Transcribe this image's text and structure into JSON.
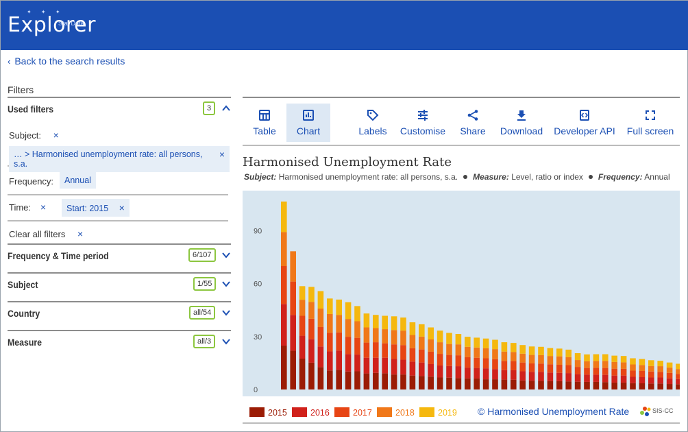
{
  "header": {
    "logo_text": "Explorer",
    "logo_sub": "Stat Data"
  },
  "back_link": "Back to the search results",
  "filters": {
    "title": "Filters",
    "used": {
      "title": "Used filters",
      "count": "3",
      "subject_label": "Subject:",
      "subject_chip": "… > Harmonised unemployment rate: all persons, s.a.",
      "frequency_label": "Frequency:",
      "frequency_chip": "Annual",
      "time_label": "Time:",
      "time_chip": "Start: 2015",
      "clear_all": "Clear all filters"
    },
    "sections": [
      {
        "title": "Frequency & Time period",
        "count": "6/107"
      },
      {
        "title": "Subject",
        "count": "1/55"
      },
      {
        "title": "Country",
        "count": "all/54"
      },
      {
        "title": "Measure",
        "count": "all/3"
      }
    ]
  },
  "toolbar": {
    "table": "Table",
    "chart": "Chart",
    "labels": "Labels",
    "customise": "Customise",
    "share": "Share",
    "download": "Download",
    "developer_api": "Developer API",
    "full_screen": "Full screen"
  },
  "chart_header": {
    "title": "Harmonised Unemployment Rate",
    "subject_key": "Subject:",
    "subject_val": "Harmonised unemployment rate: all persons, s.a.",
    "measure_key": "Measure:",
    "measure_val": "Level, ratio or index",
    "frequency_key": "Frequency:",
    "frequency_val": "Annual"
  },
  "copyright": "© Harmonised Unemployment Rate",
  "logo2": "SIS-CC",
  "colors": {
    "brand": "#1b4fb3",
    "badge_border": "#8cc63f",
    "plot_bg": "#d8e6f0",
    "series": [
      "#9b1c05",
      "#d0211b",
      "#e74514",
      "#f07819",
      "#f5b80e"
    ]
  },
  "chart_data": {
    "type": "bar",
    "stacked": true,
    "yticks": [
      0,
      30,
      60,
      90
    ],
    "ylim": [
      0,
      105
    ],
    "grid": false,
    "legend": "bottom",
    "series": [
      {
        "name": "2015",
        "values": [
          24.9,
          22.0,
          17.5,
          15.2,
          12.7,
          10.8,
          11.2,
          10.2,
          10.3,
          9.1,
          9.4,
          9.2,
          8.5,
          8.5,
          7.9,
          7.7,
          7.3,
          6.8,
          6.7,
          6.5,
          6.3,
          6.2,
          5.8,
          5.8,
          5.6,
          5.5,
          5.1,
          5.0,
          4.9,
          4.8,
          4.7,
          4.6,
          4.4,
          4.3,
          4.3,
          4.2,
          3.9,
          3.9,
          3.6,
          3.5,
          3.4,
          3.4,
          3.1,
          3.0,
          2.9,
          2.9,
          2.7,
          2.5,
          2.4,
          2.2,
          2.0,
          1.8
        ]
      },
      {
        "name": "2016",
        "values": [
          23.6,
          20.3,
          13.0,
          13.3,
          11.7,
          10.8,
          10.9,
          9.9,
          9.5,
          8.9,
          8.6,
          8.8,
          8.8,
          8.4,
          7.9,
          7.6,
          7.1,
          6.8,
          6.6,
          6.7,
          6.1,
          6.0,
          6.2,
          5.8,
          5.4,
          5.4,
          5.2,
          5.0,
          5.1,
          4.8,
          4.7,
          4.7,
          4.3,
          4.1,
          4.1,
          4.1,
          4.0,
          4.0,
          3.6,
          3.5,
          3.4,
          3.4,
          3.2,
          2.9,
          2.8,
          2.8,
          2.7,
          2.6,
          2.5,
          2.2,
          2.0,
          1.9
        ]
      },
      {
        "name": "2017",
        "values": [
          21.5,
          18.9,
          11.3,
          11.6,
          11.0,
          10.6,
          10.3,
          9.8,
          9.5,
          8.6,
          8.8,
          8.2,
          8.3,
          8.3,
          7.6,
          7.4,
          7.0,
          6.6,
          6.3,
          6.2,
          5.9,
          5.8,
          5.7,
          5.6,
          5.2,
          5.2,
          5.0,
          4.8,
          4.7,
          4.7,
          4.6,
          4.5,
          4.1,
          3.8,
          3.9,
          3.9,
          3.9,
          3.8,
          3.5,
          3.5,
          3.4,
          3.2,
          3.1,
          2.9,
          2.9,
          2.8,
          2.7,
          2.4,
          2.4,
          2.1,
          1.9,
          1.7
        ]
      },
      {
        "name": "2018",
        "values": [
          19.3,
          17.2,
          9.1,
          9.6,
          10.5,
          10.6,
          9.9,
          10.1,
          9.4,
          8.6,
          8.0,
          8.0,
          8.1,
          8.2,
          7.5,
          7.3,
          7.0,
          6.6,
          6.2,
          6.2,
          5.9,
          5.8,
          5.7,
          5.7,
          5.3,
          5.2,
          5.0,
          4.8,
          4.8,
          4.7,
          4.8,
          4.5,
          3.9,
          3.8,
          3.9,
          4.0,
          3.8,
          3.7,
          3.5,
          3.4,
          3.1,
          3.2,
          3.0,
          2.8,
          2.8,
          2.7,
          2.5,
          2.4,
          2.3,
          2.2,
          2.0,
          1.9
        ]
      },
      {
        "name": "2019",
        "values": [
          17.3,
          0,
          7.7,
          8.5,
          9.9,
          8.8,
          8.7,
          9.5,
          8.6,
          7.9,
          7.5,
          7.6,
          7.8,
          7.4,
          7.2,
          7.0,
          6.8,
          6.6,
          6.3,
          5.9,
          5.7,
          5.6,
          5.5,
          5.3,
          5.3,
          5.1,
          4.9,
          4.8,
          4.7,
          4.5,
          4.4,
          4.3,
          3.9,
          3.9,
          3.8,
          3.8,
          3.6,
          3.6,
          3.5,
          3.4,
          3.3,
          3.1,
          2.9,
          3.0,
          2.8,
          2.5,
          2.4,
          2.3,
          2.2,
          2.1,
          2.0,
          1.9
        ]
      }
    ]
  }
}
